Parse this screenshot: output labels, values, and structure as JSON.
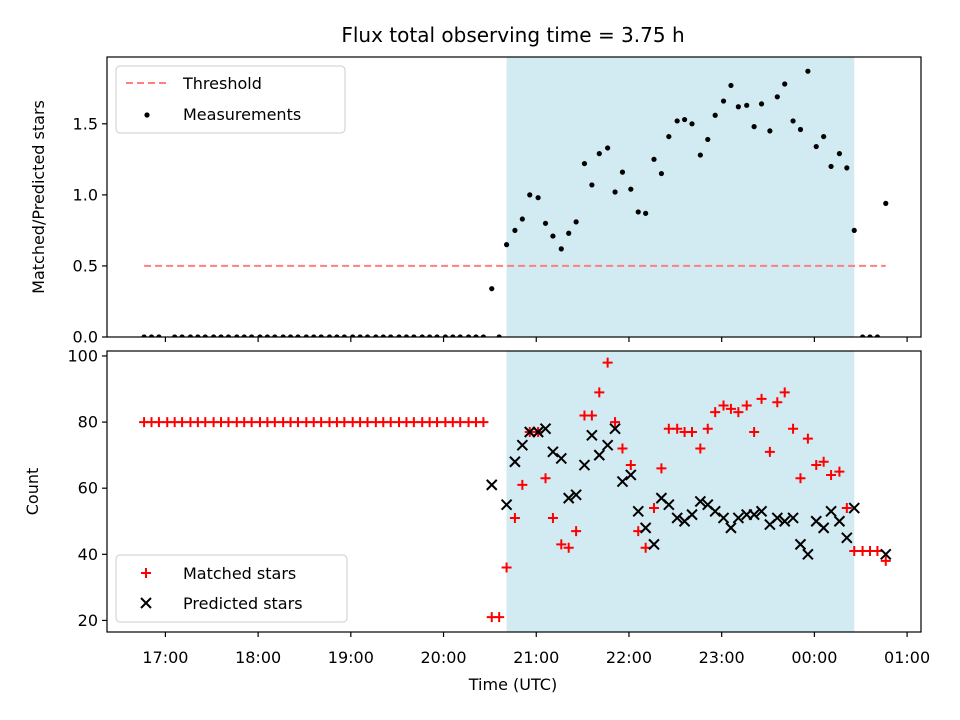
{
  "title": "Flux total observing time = 3.75 h",
  "xlabel": "Time (UTC)",
  "xticks": [
    "17:00",
    "18:00",
    "19:00",
    "20:00",
    "21:00",
    "22:00",
    "23:00",
    "00:00",
    "01:00"
  ],
  "colors": {
    "threshold": "#ff7f7f",
    "band": "#add8e6",
    "matched": "#ff0000",
    "predicted": "#000000",
    "measurement": "#000000"
  },
  "chart_data": [
    {
      "type": "scatter",
      "ylabel": "Matched/Predicted stars",
      "ylim": [
        0,
        1.97
      ],
      "yticks": [
        "0.0",
        "0.5",
        "1.0",
        "1.5"
      ],
      "xlim_hours": [
        16.37,
        25.15
      ],
      "shaded_interval_hours": [
        20.68,
        24.43
      ],
      "legend": {
        "position": "top-left",
        "entries": [
          "Threshold",
          "Measurements"
        ]
      },
      "threshold": {
        "name": "Threshold",
        "value": 0.5,
        "x_range_hours": [
          16.77,
          24.77
        ]
      },
      "series": [
        {
          "name": "Measurements",
          "x_hours": [
            16.77,
            16.85,
            16.93,
            17.1,
            17.18,
            17.27,
            17.35,
            17.43,
            17.52,
            17.6,
            17.68,
            17.77,
            17.85,
            17.93,
            18.02,
            18.1,
            18.18,
            18.27,
            18.35,
            18.43,
            18.52,
            18.6,
            18.68,
            18.77,
            18.85,
            18.93,
            19.02,
            19.1,
            19.18,
            19.27,
            19.35,
            19.43,
            19.52,
            19.6,
            19.68,
            19.77,
            19.85,
            19.93,
            20.02,
            20.1,
            20.18,
            20.27,
            20.35,
            20.43,
            20.52,
            20.6,
            20.68,
            20.77,
            20.85,
            20.93,
            21.02,
            21.1,
            21.18,
            21.27,
            21.35,
            21.43,
            21.52,
            21.6,
            21.68,
            21.77,
            21.85,
            21.93,
            22.02,
            22.1,
            22.18,
            22.27,
            22.35,
            22.43,
            22.52,
            22.6,
            22.68,
            22.77,
            22.85,
            22.93,
            23.02,
            23.1,
            23.18,
            23.27,
            23.35,
            23.43,
            23.52,
            23.6,
            23.68,
            23.77,
            23.85,
            23.93,
            24.02,
            24.1,
            24.18,
            24.27,
            24.35,
            24.43,
            24.52,
            24.6,
            24.68,
            24.77
          ],
          "y": [
            0,
            0,
            0,
            0,
            0,
            0,
            0,
            0,
            0,
            0,
            0,
            0,
            0,
            0,
            0,
            0,
            0,
            0,
            0,
            0,
            0,
            0,
            0,
            0,
            0,
            0,
            0,
            0,
            0,
            0,
            0,
            0,
            0,
            0,
            0,
            0,
            0,
            0,
            0,
            0,
            0,
            0,
            0,
            0,
            0.34,
            0,
            0.65,
            0.75,
            0.83,
            1.0,
            0.98,
            0.8,
            0.71,
            0.62,
            0.73,
            0.81,
            1.22,
            1.07,
            1.29,
            1.33,
            1.02,
            1.16,
            1.04,
            0.88,
            0.87,
            1.25,
            1.15,
            1.41,
            1.52,
            1.53,
            1.5,
            1.28,
            1.39,
            1.56,
            1.66,
            1.77,
            1.62,
            1.63,
            1.48,
            1.64,
            1.45,
            1.69,
            1.78,
            1.52,
            1.46,
            1.87,
            1.34,
            1.41,
            1.2,
            1.29,
            1.19,
            0.75,
            0,
            0,
            0,
            0.94
          ]
        }
      ]
    },
    {
      "type": "scatter",
      "ylabel": "Count",
      "ylim": [
        16.5,
        101.5
      ],
      "yticks": [
        "20",
        "40",
        "60",
        "80",
        "100"
      ],
      "xlim_hours": [
        16.37,
        25.15
      ],
      "shaded_interval_hours": [
        20.68,
        24.43
      ],
      "legend": {
        "position": "bottom-left",
        "entries": [
          "Matched stars",
          "Predicted stars"
        ]
      },
      "series": [
        {
          "name": "Matched stars",
          "marker": "+",
          "x_hours": [
            16.77,
            16.85,
            16.93,
            17.02,
            17.1,
            17.18,
            17.27,
            17.35,
            17.43,
            17.52,
            17.6,
            17.68,
            17.77,
            17.85,
            17.93,
            18.02,
            18.1,
            18.18,
            18.27,
            18.35,
            18.43,
            18.52,
            18.6,
            18.68,
            18.77,
            18.85,
            18.93,
            19.02,
            19.1,
            19.18,
            19.27,
            19.35,
            19.43,
            19.52,
            19.6,
            19.68,
            19.77,
            19.85,
            19.93,
            20.02,
            20.1,
            20.18,
            20.27,
            20.35,
            20.43,
            20.52,
            20.6,
            20.68,
            20.77,
            20.85,
            20.93,
            21.02,
            21.1,
            21.18,
            21.27,
            21.35,
            21.43,
            21.52,
            21.6,
            21.68,
            21.77,
            21.85,
            21.93,
            22.02,
            22.1,
            22.18,
            22.27,
            22.35,
            22.43,
            22.52,
            22.6,
            22.68,
            22.77,
            22.85,
            22.93,
            23.02,
            23.1,
            23.18,
            23.27,
            23.35,
            23.43,
            23.52,
            23.6,
            23.68,
            23.77,
            23.85,
            23.93,
            24.02,
            24.1,
            24.18,
            24.27,
            24.35,
            24.43,
            24.52,
            24.6,
            24.68,
            24.77
          ],
          "y": [
            80,
            80,
            80,
            80,
            80,
            80,
            80,
            80,
            80,
            80,
            80,
            80,
            80,
            80,
            80,
            80,
            80,
            80,
            80,
            80,
            80,
            80,
            80,
            80,
            80,
            80,
            80,
            80,
            80,
            80,
            80,
            80,
            80,
            80,
            80,
            80,
            80,
            80,
            80,
            80,
            80,
            80,
            80,
            80,
            80,
            21,
            21,
            36,
            51,
            61,
            77,
            77,
            63,
            51,
            43,
            42,
            47,
            82,
            82,
            89,
            98,
            80,
            72,
            67,
            47,
            42,
            54,
            66,
            78,
            78,
            77,
            77,
            72,
            78,
            83,
            85,
            84,
            83,
            85,
            77,
            87,
            71,
            86,
            89,
            78,
            63,
            75,
            67,
            68,
            64,
            65,
            54,
            41,
            41,
            41,
            41,
            38
          ]
        },
        {
          "name": "Predicted stars",
          "marker": "x",
          "x_hours": [
            20.52,
            20.68,
            20.77,
            20.85,
            20.93,
            21.02,
            21.1,
            21.18,
            21.27,
            21.35,
            21.43,
            21.52,
            21.6,
            21.68,
            21.77,
            21.85,
            21.93,
            22.02,
            22.1,
            22.18,
            22.27,
            22.35,
            22.43,
            22.52,
            22.6,
            22.68,
            22.77,
            22.85,
            22.93,
            23.02,
            23.1,
            23.18,
            23.27,
            23.35,
            23.43,
            23.52,
            23.6,
            23.68,
            23.77,
            23.85,
            23.93,
            24.02,
            24.1,
            24.18,
            24.27,
            24.35,
            24.43,
            24.77
          ],
          "y": [
            61,
            55,
            68,
            73,
            77,
            77,
            78,
            71,
            69,
            57,
            58,
            67,
            76,
            70,
            73,
            78,
            62,
            64,
            53,
            48,
            43,
            57,
            55,
            51,
            50,
            52,
            56,
            55,
            53,
            51,
            48,
            51,
            52,
            52,
            53,
            49,
            51,
            50,
            51,
            43,
            40,
            50,
            48,
            53,
            50,
            45,
            54,
            40
          ]
        }
      ]
    }
  ]
}
